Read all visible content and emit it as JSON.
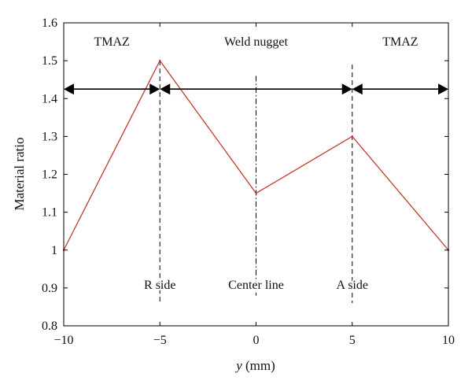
{
  "chart_data": {
    "type": "line",
    "xlabel_var": "y",
    "xlabel_unit": " (mm)",
    "ylabel": "Material ratio",
    "xlim": [
      -10,
      10
    ],
    "ylim": [
      0.8,
      1.6
    ],
    "xticks": [
      -10,
      -5,
      0,
      5,
      10
    ],
    "xtick_labels": [
      "−10",
      "−5",
      "0",
      "5",
      "10"
    ],
    "yticks": [
      0.8,
      0.9,
      1.0,
      1.1,
      1.2,
      1.3,
      1.4,
      1.5,
      1.6
    ],
    "ytick_labels": [
      "0.8",
      "0.9",
      "1",
      "1.1",
      "1.2",
      "1.3",
      "1.4",
      "1.5",
      "1.6"
    ],
    "series": [
      {
        "name": "Material ratio",
        "color": "#c0392b",
        "x": [
          -10,
          -5,
          0,
          5,
          10
        ],
        "y": [
          1.0,
          1.5,
          1.15,
          1.3,
          1.0
        ]
      }
    ],
    "vlines": [
      {
        "name": "R side",
        "x": -5,
        "style": "dashed",
        "y_from": 0.86,
        "y_to": 1.5
      },
      {
        "name": "Center line",
        "x": 0,
        "style": "dashdot",
        "y_from": 0.88,
        "y_to": 1.46
      },
      {
        "name": "A side",
        "x": 5,
        "style": "dashed",
        "y_from": 0.86,
        "y_to": 1.49
      }
    ],
    "zone_arrows": [
      {
        "from": -10,
        "to": -5,
        "y": 1.425
      },
      {
        "from": -5,
        "to": 5,
        "y": 1.425
      },
      {
        "from": 5,
        "to": 10,
        "y": 1.425
      }
    ],
    "region_labels": [
      {
        "text": "TMAZ",
        "x": -7.5,
        "y": 1.54
      },
      {
        "text": "Weld nugget",
        "x": 0,
        "y": 1.54
      },
      {
        "text": "TMAZ",
        "x": 7.5,
        "y": 1.54
      }
    ],
    "line_labels": [
      {
        "text": "R side",
        "x": -5,
        "y": 0.91
      },
      {
        "text": "Center line",
        "x": 0,
        "y": 0.91
      },
      {
        "text": "A side",
        "x": 5,
        "y": 0.91
      }
    ],
    "grid": false
  }
}
